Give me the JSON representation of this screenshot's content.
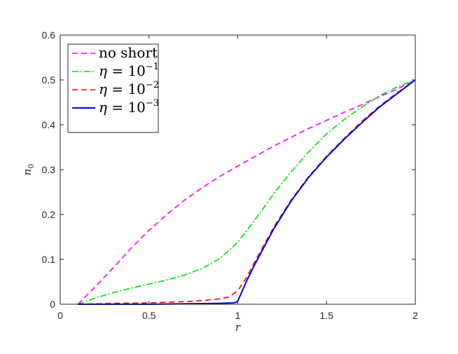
{
  "chart_data": {
    "type": "line",
    "title": "",
    "xlabel": "r",
    "ylabel": {
      "base": "n",
      "sub": "0"
    },
    "xlim": [
      0,
      2
    ],
    "ylim": [
      0,
      0.6
    ],
    "xticks": [
      0,
      0.5,
      1,
      1.5,
      2
    ],
    "xtick_labels": [
      "0",
      "0.5",
      "1",
      "1.5",
      "2"
    ],
    "yticks": [
      0,
      0.1,
      0.2,
      0.3,
      0.4,
      0.5,
      0.6
    ],
    "ytick_labels": [
      "0",
      "0.1",
      "0.2",
      "0.3",
      "0.4",
      "0.5",
      "0.6"
    ],
    "grid": false,
    "legend_position": "top-left",
    "series": [
      {
        "name": "no short",
        "color": "#ff00ff",
        "dash": "dashed",
        "x": [
          0.1,
          0.2,
          0.3,
          0.4,
          0.5,
          0.6,
          0.7,
          0.8,
          0.9,
          1.0,
          1.1,
          1.2,
          1.3,
          1.4,
          1.5,
          1.6,
          1.7,
          1.8,
          1.9,
          2.0
        ],
        "y": [
          0.0,
          0.04,
          0.082,
          0.125,
          0.165,
          0.2,
          0.232,
          0.26,
          0.285,
          0.308,
          0.33,
          0.352,
          0.372,
          0.392,
          0.41,
          0.428,
          0.445,
          0.463,
          0.48,
          0.5
        ]
      },
      {
        "legend": {
          "greek": "η",
          "rel": " = 10",
          "exp": "−1"
        },
        "color": "#00e000",
        "dash": "dashdot",
        "x": [
          0.1,
          0.2,
          0.3,
          0.4,
          0.5,
          0.6,
          0.7,
          0.8,
          0.9,
          1.0,
          1.1,
          1.2,
          1.3,
          1.4,
          1.5,
          1.6,
          1.7,
          1.8,
          1.9,
          2.0
        ],
        "y": [
          0.0,
          0.014,
          0.026,
          0.036,
          0.045,
          0.054,
          0.065,
          0.08,
          0.102,
          0.138,
          0.19,
          0.245,
          0.295,
          0.34,
          0.38,
          0.412,
          0.44,
          0.465,
          0.485,
          0.5
        ]
      },
      {
        "legend": {
          "greek": "η",
          "rel": " = 10",
          "exp": "−2"
        },
        "color": "#ff0000",
        "dash": "dashed",
        "x": [
          0.1,
          0.3,
          0.5,
          0.7,
          0.8,
          0.9,
          0.95,
          1.0,
          1.05,
          1.1,
          1.2,
          1.3,
          1.4,
          1.5,
          1.6,
          1.7,
          1.8,
          1.9,
          2.0
        ],
        "y": [
          0.0,
          0.002,
          0.003,
          0.006,
          0.008,
          0.012,
          0.016,
          0.03,
          0.06,
          0.098,
          0.17,
          0.232,
          0.285,
          0.33,
          0.37,
          0.408,
          0.442,
          0.472,
          0.5
        ]
      },
      {
        "legend": {
          "greek": "η",
          "rel": " = 10",
          "exp": "−3"
        },
        "color": "#0000dd",
        "dash": "solid",
        "x": [
          0.1,
          0.3,
          0.5,
          0.7,
          0.9,
          0.97,
          0.99,
          1.0,
          1.02,
          1.05,
          1.1,
          1.2,
          1.3,
          1.4,
          1.5,
          1.6,
          1.7,
          1.8,
          1.9,
          2.0
        ],
        "y": [
          0.0,
          0.0,
          0.0,
          0.001,
          0.002,
          0.003,
          0.004,
          0.007,
          0.025,
          0.052,
          0.092,
          0.166,
          0.23,
          0.283,
          0.328,
          0.368,
          0.405,
          0.44,
          0.47,
          0.5
        ]
      }
    ]
  }
}
